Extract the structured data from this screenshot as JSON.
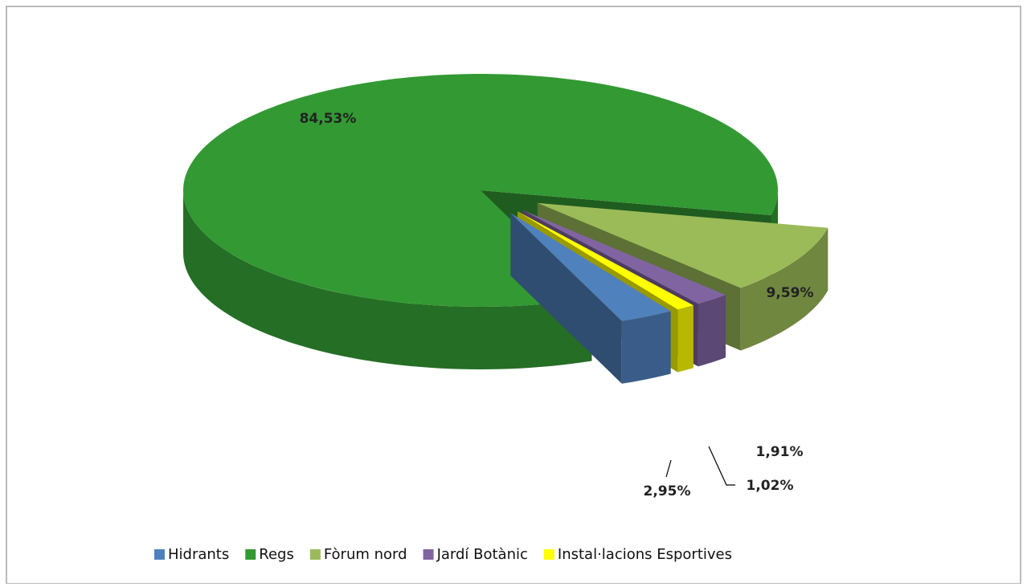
{
  "chart_data": {
    "type": "pie",
    "categories": [
      "Hidrants",
      "Regs",
      "Fòrum nord",
      "Jardí Botànic",
      "Instal·lacions Esportives"
    ],
    "values": [
      2.95,
      84.53,
      9.59,
      1.91,
      1.02
    ],
    "value_labels": [
      "2,95%",
      "84,53%",
      "9,59%",
      "1,91%",
      "1,02%"
    ],
    "colors": [
      "#4f81bd",
      "#339933",
      "#9bbb59",
      "#8064a2",
      "#ffff00"
    ],
    "legend": "bottom"
  }
}
